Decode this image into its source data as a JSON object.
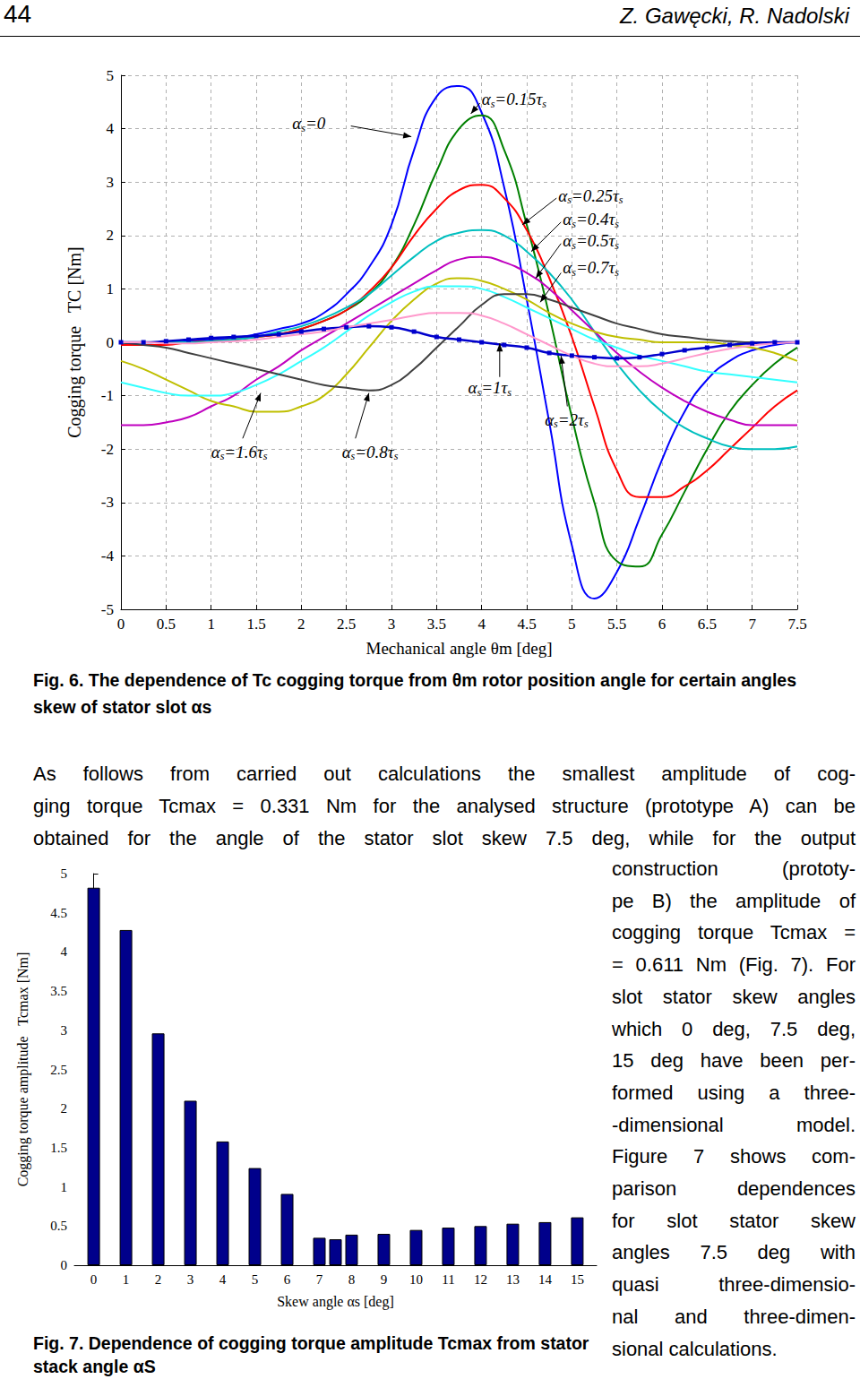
{
  "header": {
    "page": "44",
    "authors": "Z. Gawęcki, R. Nadolski"
  },
  "chart_data": [
    {
      "type": "line",
      "x_label": "Mechanical angle θm [deg]",
      "y_label": "Cogging torque   TC [Nm]",
      "caption": {
        "label": "Fig. 6.",
        "text": "The dependence of Tc cogging torque from θm rotor position angle for certain angles skew of stator slot αs"
      },
      "x": [
        0,
        0.25,
        0.5,
        0.75,
        1,
        1.25,
        1.5,
        1.75,
        2,
        2.25,
        2.5,
        2.75,
        3,
        3.25,
        3.5,
        3.75,
        4,
        4.25,
        4.5,
        4.75,
        5,
        5.25,
        5.5,
        5.75,
        6,
        6.25,
        6.5,
        6.75,
        7,
        7.25,
        7.5
      ],
      "xlim": [
        0,
        7.5
      ],
      "xticks": [
        0,
        0.5,
        1,
        1.5,
        2,
        2.5,
        3,
        3.5,
        4,
        4.5,
        5,
        5.5,
        6,
        6.5,
        7,
        7.5
      ],
      "ylim": [
        -5,
        5
      ],
      "yticks": [
        -5,
        -4,
        -3,
        -2,
        -1,
        0,
        1,
        2,
        3,
        4,
        5
      ],
      "grid": true,
      "series": [
        {
          "name": "αs=0",
          "color": "#0000ff",
          "values": [
            0,
            0,
            0,
            0.02,
            0.05,
            0.08,
            0.15,
            0.25,
            0.35,
            0.55,
            0.9,
            1.4,
            2.2,
            3.6,
            4.6,
            4.8,
            4.3,
            2.9,
            0.8,
            -1.5,
            -3.8,
            -4.8,
            -4.3,
            -3.3,
            -2.2,
            -1.3,
            -0.7,
            -0.35,
            -0.15,
            -0.05,
            0
          ]
        },
        {
          "name": "αs=0.15τs",
          "color": "#008000",
          "values": [
            -0.05,
            0,
            0,
            0,
            0.02,
            0.05,
            0.1,
            0.15,
            0.25,
            0.4,
            0.6,
            0.9,
            1.4,
            2.2,
            3.2,
            4.0,
            4.25,
            3.6,
            2.2,
            0.5,
            -1.4,
            -3.0,
            -4.1,
            -4.2,
            -3.6,
            -2.8,
            -2.0,
            -1.3,
            -0.8,
            -0.4,
            -0.1
          ]
        },
        {
          "name": "αs=0.25τs",
          "color": "#ff0000",
          "values": [
            -0.05,
            -0.05,
            -0.05,
            0,
            0.02,
            0.05,
            0.1,
            0.15,
            0.25,
            0.4,
            0.6,
            0.95,
            1.4,
            2.0,
            2.5,
            2.85,
            2.95,
            2.7,
            2.1,
            1.2,
            0.1,
            -1.2,
            -2.4,
            -2.9,
            -2.9,
            -2.7,
            -2.4,
            -2.0,
            -1.6,
            -1.2,
            -0.9
          ]
        },
        {
          "name": "αs=0.4τs",
          "color": "#00bfbf",
          "values": [
            0,
            0,
            0,
            0,
            0.02,
            0.05,
            0.1,
            0.2,
            0.3,
            0.45,
            0.65,
            0.9,
            1.25,
            1.6,
            1.9,
            2.05,
            2.1,
            2.0,
            1.7,
            1.3,
            0.8,
            0.2,
            -0.4,
            -0.9,
            -1.3,
            -1.6,
            -1.8,
            -1.95,
            -2.0,
            -2.0,
            -1.95
          ]
        },
        {
          "name": "αs=0.5τs",
          "color": "#bf00bf",
          "values": [
            -1.55,
            -1.55,
            -1.5,
            -1.4,
            -1.2,
            -1.0,
            -0.7,
            -0.45,
            -0.15,
            0.1,
            0.35,
            0.6,
            0.85,
            1.1,
            1.35,
            1.55,
            1.6,
            1.5,
            1.3,
            1.0,
            0.6,
            0.2,
            -0.2,
            -0.55,
            -0.85,
            -1.1,
            -1.3,
            -1.45,
            -1.55,
            -1.55,
            -1.55
          ]
        },
        {
          "name": "αs=0.7τs",
          "color": "#bfbf00",
          "values": [
            -0.35,
            -0.5,
            -0.7,
            -0.9,
            -1.1,
            -1.2,
            -1.3,
            -1.3,
            -1.2,
            -1.0,
            -0.6,
            -0.1,
            0.4,
            0.8,
            1.1,
            1.2,
            1.15,
            1.0,
            0.8,
            0.55,
            0.35,
            0.2,
            0.1,
            0.05,
            0,
            0,
            0,
            -0.05,
            -0.1,
            -0.2,
            -0.35
          ]
        },
        {
          "name": "αs=1.6τs",
          "color": "#33ffff",
          "values": [
            -0.75,
            -0.85,
            -0.95,
            -1.0,
            -1.0,
            -0.95,
            -0.8,
            -0.6,
            -0.35,
            -0.1,
            0.2,
            0.5,
            0.75,
            0.95,
            1.05,
            1.05,
            1.0,
            0.85,
            0.65,
            0.45,
            0.25,
            0.05,
            -0.1,
            -0.25,
            -0.35,
            -0.45,
            -0.55,
            -0.6,
            -0.65,
            -0.7,
            -0.75
          ]
        },
        {
          "name": "αs=0.8τs",
          "color": "#404040",
          "values": [
            0,
            -0.05,
            -0.1,
            -0.2,
            -0.3,
            -0.4,
            -0.5,
            -0.6,
            -0.7,
            -0.8,
            -0.85,
            -0.9,
            -0.8,
            -0.5,
            -0.1,
            0.3,
            0.7,
            0.9,
            0.9,
            0.8,
            0.65,
            0.5,
            0.35,
            0.25,
            0.15,
            0.1,
            0.05,
            0.02,
            0,
            0,
            0
          ]
        },
        {
          "name": "αs=1τs",
          "color": "#0000cc",
          "marker": "square",
          "values": [
            0,
            0,
            0.02,
            0.05,
            0.08,
            0.1,
            0.12,
            0.15,
            0.2,
            0.25,
            0.28,
            0.3,
            0.28,
            0.2,
            0.1,
            0.05,
            0,
            -0.05,
            -0.1,
            -0.2,
            -0.25,
            -0.28,
            -0.3,
            -0.28,
            -0.22,
            -0.15,
            -0.1,
            -0.05,
            -0.02,
            0,
            0
          ]
        },
        {
          "name": "αs=2τs",
          "color": "#ff99cc",
          "values": [
            0,
            0,
            -0.02,
            -0.02,
            0,
            0.02,
            0.05,
            0.1,
            0.15,
            0.2,
            0.28,
            0.35,
            0.42,
            0.5,
            0.55,
            0.55,
            0.5,
            0.35,
            0.15,
            -0.05,
            -0.25,
            -0.4,
            -0.45,
            -0.45,
            -0.4,
            -0.3,
            -0.2,
            -0.12,
            -0.06,
            -0.02,
            0
          ]
        }
      ]
    },
    {
      "type": "bar",
      "x_label": "Skew angle αs [deg]",
      "y_label": "Cogging torque amplitude   Tcmax [Nm]",
      "caption": {
        "label": "Fig. 7.",
        "text": "Dependence of cogging torque amplitude Tcmax from stator stack angle αS"
      },
      "x": [
        0,
        1,
        2,
        3,
        4,
        5,
        6,
        7,
        7.5,
        8,
        9,
        10,
        11,
        12,
        13,
        14,
        15
      ],
      "values": [
        4.82,
        4.28,
        2.96,
        2.1,
        1.58,
        1.24,
        0.91,
        0.35,
        0.331,
        0.39,
        0.4,
        0.45,
        0.48,
        0.5,
        0.53,
        0.55,
        0.611
      ],
      "color": "#00008b",
      "xlim": [
        -0.6,
        15.6
      ],
      "xticks": [
        0,
        1,
        2,
        3,
        4,
        5,
        6,
        7,
        8,
        9,
        10,
        11,
        12,
        13,
        14,
        15
      ],
      "ylim": [
        0,
        5
      ],
      "yticks": [
        0,
        0.5,
        1,
        1.5,
        2,
        2.5,
        3,
        3.5,
        4,
        4.5,
        5
      ],
      "grid": false
    }
  ],
  "body": {
    "paragraph": [
      "As follows from carried out calculations the smallest amplitude of cog-",
      "ging torque Tcmax = 0.331 Nm for the analysed structure (prototype A) can be",
      "obtained for the angle of the stator slot skew 7.5 deg, while for the output"
    ],
    "column": [
      "construction (prototy-",
      "pe B) the amplitude of",
      "cogging torque Tcmax =",
      "= 0.611 Nm (Fig. 7). For",
      "slot stator skew angles",
      "which 0 deg, 7.5 deg,",
      "15 deg have been per-",
      "formed using a three-",
      "-dimensional model.",
      "Figure 7 shows com-",
      "parison dependences",
      "for slot stator skew",
      "angles 7.5 deg with",
      "quasi three-dimensio-",
      "nal and three-dimen-",
      "sional calculations."
    ]
  }
}
